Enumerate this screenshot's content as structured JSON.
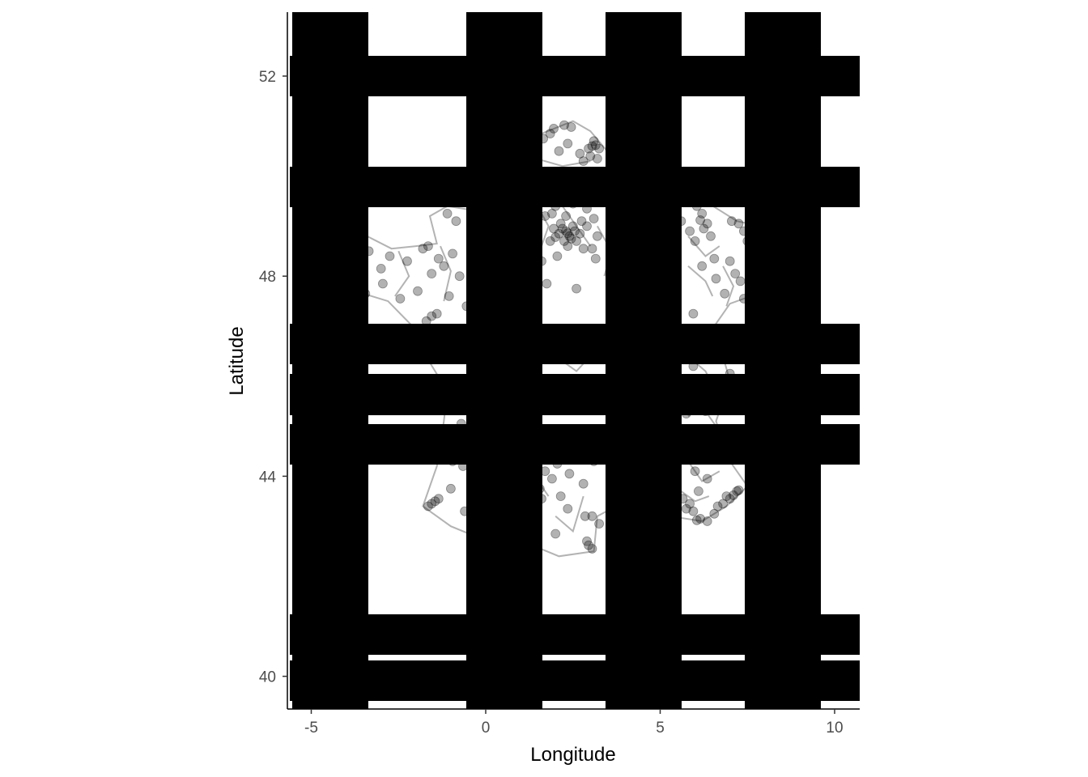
{
  "chart_data": {
    "type": "scatter",
    "title": "",
    "xlabel": "Longitude",
    "ylabel": "Latitude",
    "xlim": [
      -5.6,
      10.6
    ],
    "ylim": [
      39.5,
      53.2
    ],
    "x_ticks": [
      "-5",
      "0",
      "5",
      "10"
    ],
    "x_tick_values": [
      -5,
      0,
      5,
      10
    ],
    "y_ticks": [
      "40",
      "44",
      "48",
      "52"
    ],
    "y_tick_values": [
      40,
      44,
      48,
      52
    ],
    "grid": false,
    "legend": "none",
    "series": [
      {
        "points_color": "#000000",
        "points_opacity": 0.3,
        "border_color": "#b3b3b3",
        "values": [
          [
            2.35,
            48.86
          ],
          [
            2.3,
            48.9
          ],
          [
            2.4,
            48.8
          ],
          [
            2.2,
            48.95
          ],
          [
            2.45,
            48.75
          ],
          [
            2.1,
            48.85
          ],
          [
            2.55,
            48.9
          ],
          [
            2.25,
            48.7
          ],
          [
            2.5,
            49.0
          ],
          [
            2.0,
            48.78
          ],
          [
            2.6,
            48.7
          ],
          [
            2.15,
            49.05
          ],
          [
            1.95,
            48.95
          ],
          [
            2.7,
            48.85
          ],
          [
            2.35,
            48.6
          ],
          [
            2.75,
            49.1
          ],
          [
            1.85,
            48.7
          ],
          [
            2.3,
            49.2
          ],
          [
            1.9,
            49.25
          ],
          [
            2.8,
            48.55
          ],
          [
            2.05,
            48.4
          ],
          [
            3.05,
            48.55
          ],
          [
            1.6,
            48.3
          ],
          [
            1.75,
            47.85
          ],
          [
            2.6,
            47.75
          ],
          [
            3.2,
            48.8
          ],
          [
            3.1,
            49.15
          ],
          [
            2.9,
            49.35
          ],
          [
            3.05,
            50.6
          ],
          [
            3.1,
            50.7
          ],
          [
            3.15,
            50.62
          ],
          [
            2.95,
            50.55
          ],
          [
            3.0,
            50.4
          ],
          [
            2.7,
            50.45
          ],
          [
            2.35,
            50.65
          ],
          [
            1.95,
            50.95
          ],
          [
            1.85,
            50.85
          ],
          [
            2.25,
            51.02
          ],
          [
            2.45,
            50.98
          ],
          [
            2.8,
            50.3
          ],
          [
            3.2,
            50.35
          ],
          [
            3.25,
            50.55
          ],
          [
            1.65,
            50.75
          ],
          [
            2.1,
            50.5
          ],
          [
            1.7,
            49.2
          ],
          [
            1.8,
            49.55
          ],
          [
            2.0,
            49.4
          ],
          [
            2.5,
            49.45
          ],
          [
            2.9,
            49.0
          ],
          [
            3.15,
            48.35
          ],
          [
            6.15,
            49.12
          ],
          [
            6.2,
            49.25
          ],
          [
            6.05,
            49.4
          ],
          [
            6.25,
            48.95
          ],
          [
            6.0,
            48.7
          ],
          [
            6.45,
            48.8
          ],
          [
            7.05,
            49.1
          ],
          [
            7.25,
            49.05
          ],
          [
            7.4,
            48.9
          ],
          [
            7.5,
            48.7
          ],
          [
            7.75,
            48.58
          ],
          [
            7.7,
            47.75
          ],
          [
            7.4,
            47.55
          ],
          [
            7.3,
            47.9
          ],
          [
            6.85,
            47.65
          ],
          [
            6.6,
            47.95
          ],
          [
            5.95,
            47.25
          ],
          [
            6.2,
            48.2
          ],
          [
            7.0,
            48.3
          ],
          [
            5.85,
            48.9
          ],
          [
            5.6,
            49.1
          ],
          [
            5.75,
            49.5
          ],
          [
            6.35,
            49.05
          ],
          [
            6.55,
            48.35
          ],
          [
            7.15,
            48.05
          ],
          [
            -2.25,
            48.3
          ],
          [
            -1.8,
            48.55
          ],
          [
            -1.65,
            48.6
          ],
          [
            -1.35,
            48.35
          ],
          [
            -1.55,
            48.05
          ],
          [
            -1.95,
            47.7
          ],
          [
            -2.45,
            47.55
          ],
          [
            -2.95,
            47.85
          ],
          [
            -3.0,
            48.15
          ],
          [
            -2.75,
            48.4
          ],
          [
            -3.35,
            48.5
          ],
          [
            -3.85,
            47.8
          ],
          [
            -4.1,
            47.95
          ],
          [
            -3.45,
            47.65
          ],
          [
            -1.2,
            48.2
          ],
          [
            -0.95,
            48.45
          ],
          [
            -0.75,
            48.0
          ],
          [
            -1.05,
            47.6
          ],
          [
            -0.55,
            47.4
          ],
          [
            -1.4,
            47.25
          ],
          [
            -1.55,
            47.2
          ],
          [
            -1.7,
            47.1
          ],
          [
            -0.35,
            48.75
          ],
          [
            -0.85,
            49.1
          ],
          [
            -1.1,
            49.25
          ],
          [
            -1.8,
            46.5
          ],
          [
            -1.25,
            46.45
          ],
          [
            -0.95,
            46.42
          ],
          [
            -1.45,
            45.35
          ],
          [
            -0.85,
            45.4
          ],
          [
            -0.5,
            44.85
          ],
          [
            -0.7,
            45.05
          ],
          [
            -1.15,
            44.65
          ],
          [
            -0.95,
            44.3
          ],
          [
            -0.65,
            44.2
          ],
          [
            -0.35,
            43.7
          ],
          [
            -1.45,
            43.5
          ],
          [
            -1.55,
            43.45
          ],
          [
            -1.65,
            43.4
          ],
          [
            -1.35,
            43.55
          ],
          [
            -1.0,
            43.75
          ],
          [
            -0.6,
            43.3
          ],
          [
            2.25,
            45.5
          ],
          [
            2.5,
            45.45
          ],
          [
            3.1,
            45.6
          ],
          [
            3.3,
            45.75
          ],
          [
            2.1,
            45.9
          ],
          [
            1.4,
            44.35
          ],
          [
            1.7,
            44.1
          ],
          [
            2.05,
            44.25
          ],
          [
            2.4,
            44.05
          ],
          [
            1.9,
            43.95
          ],
          [
            1.55,
            43.75
          ],
          [
            1.45,
            43.6
          ],
          [
            1.6,
            43.55
          ],
          [
            2.15,
            43.6
          ],
          [
            2.8,
            43.85
          ],
          [
            3.1,
            44.3
          ],
          [
            2.85,
            43.2
          ],
          [
            3.05,
            43.2
          ],
          [
            2.9,
            42.7
          ],
          [
            2.95,
            42.62
          ],
          [
            3.05,
            42.55
          ],
          [
            2.0,
            42.85
          ],
          [
            1.35,
            43.1
          ],
          [
            2.35,
            43.35
          ],
          [
            3.25,
            43.05
          ],
          [
            6.0,
            44.1
          ],
          [
            6.35,
            43.95
          ],
          [
            5.55,
            44.4
          ],
          [
            5.9,
            44.55
          ],
          [
            6.1,
            43.7
          ],
          [
            5.95,
            43.3
          ],
          [
            6.15,
            43.15
          ],
          [
            6.35,
            43.1
          ],
          [
            6.05,
            43.12
          ],
          [
            6.55,
            43.25
          ],
          [
            6.8,
            43.45
          ],
          [
            7.0,
            43.55
          ],
          [
            7.1,
            43.62
          ],
          [
            7.2,
            43.7
          ],
          [
            7.25,
            43.72
          ],
          [
            6.9,
            43.6
          ],
          [
            6.65,
            43.4
          ],
          [
            5.75,
            43.35
          ],
          [
            5.65,
            43.55
          ],
          [
            5.85,
            43.45
          ],
          [
            6.2,
            46.5
          ],
          [
            6.45,
            46.4
          ],
          [
            5.95,
            46.2
          ],
          [
            6.85,
            46.35
          ],
          [
            5.9,
            45.55
          ],
          [
            6.15,
            45.8
          ],
          [
            6.55,
            45.55
          ],
          [
            5.75,
            45.25
          ],
          [
            6.3,
            45.3
          ],
          [
            7.0,
            46.05
          ],
          [
            4.85,
            45.75
          ],
          [
            5.05,
            45.4
          ],
          [
            4.4,
            45.45
          ],
          [
            4.9,
            46.2
          ],
          [
            5.2,
            46.0
          ],
          [
            3.85,
            43.6
          ],
          [
            4.35,
            43.85
          ],
          [
            4.8,
            43.95
          ],
          [
            5.05,
            44.05
          ],
          [
            4.65,
            44.45
          ],
          [
            0.7,
            47.4
          ],
          [
            0.35,
            46.6
          ],
          [
            1.1,
            46.8
          ],
          [
            0.05,
            47.95
          ],
          [
            0.6,
            48.45
          ]
        ]
      }
    ],
    "map": {
      "region": "France departments",
      "bands_color": "#000000"
    }
  }
}
